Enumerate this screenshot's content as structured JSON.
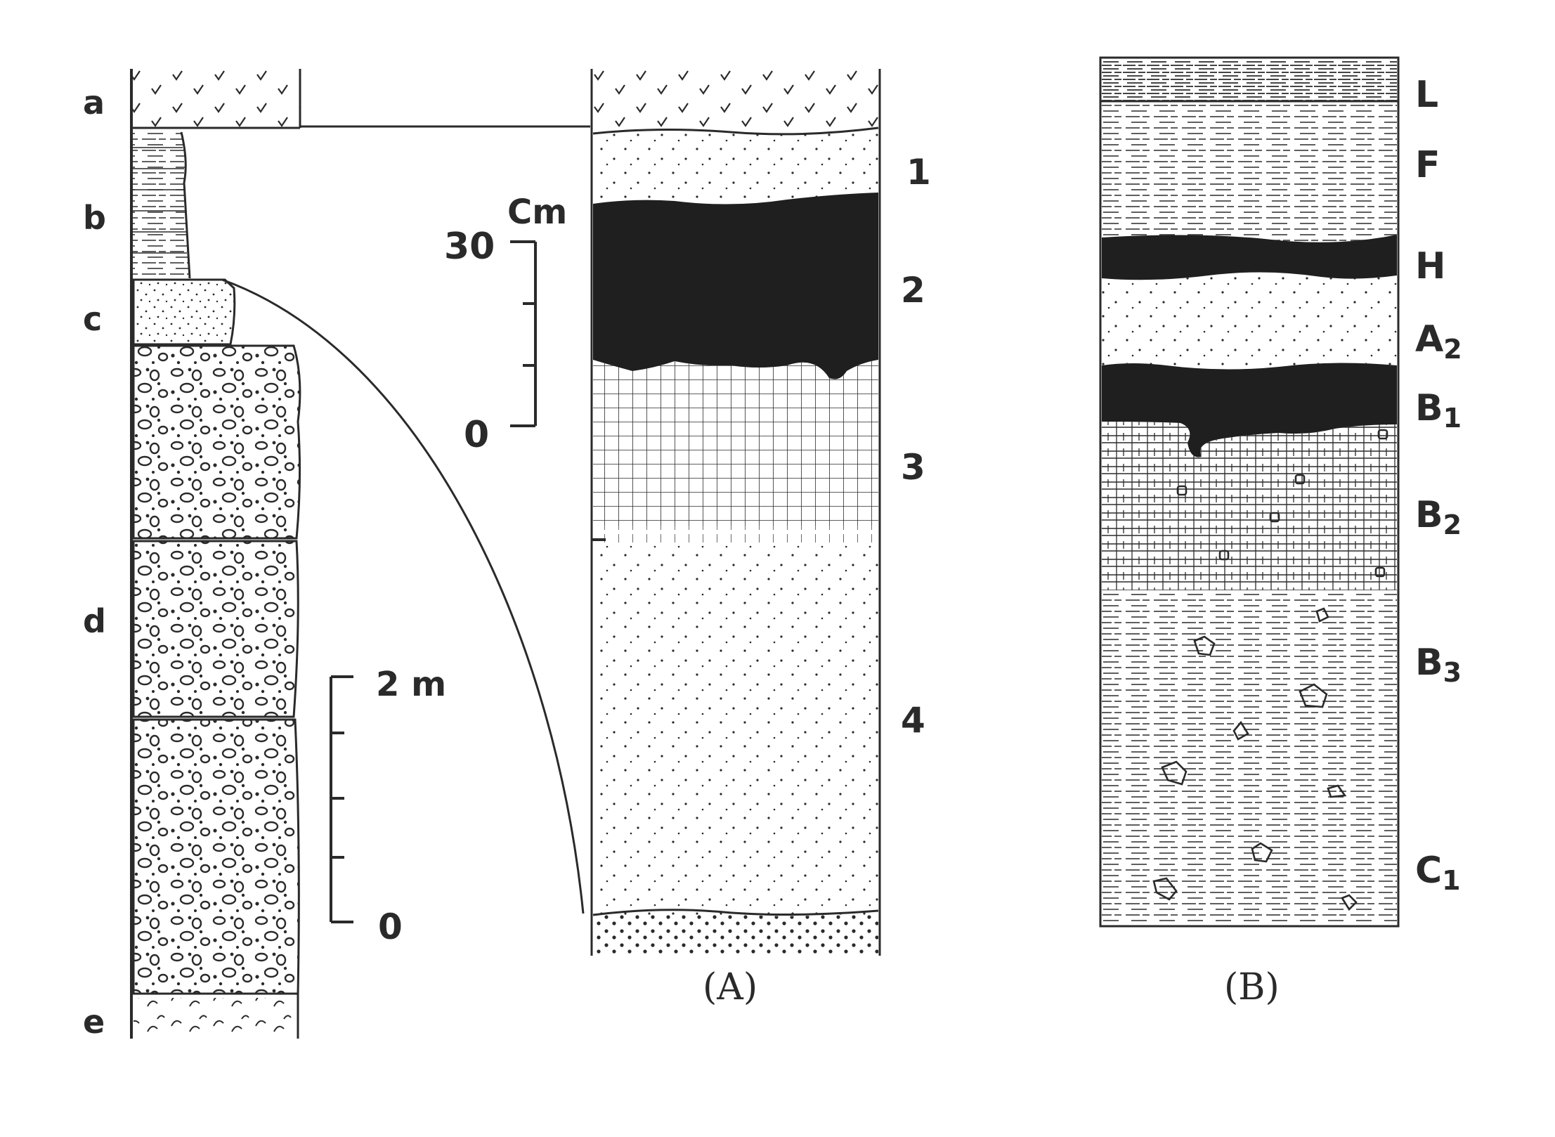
{
  "left_column": {
    "labels": [
      "a",
      "b",
      "c",
      "d",
      "e"
    ],
    "scale": {
      "top_label": "2 m",
      "bottom_label": "0"
    }
  },
  "column_a": {
    "layer_numbers": [
      "1",
      "2",
      "3",
      "4"
    ],
    "scale": {
      "unit": "Cm",
      "top_label": "30",
      "bottom_label": "0"
    },
    "caption": "(A)"
  },
  "column_b": {
    "horizons": [
      {
        "main": "L",
        "sub": ""
      },
      {
        "main": "F",
        "sub": ""
      },
      {
        "main": "H",
        "sub": ""
      },
      {
        "main": "A",
        "sub": "2"
      },
      {
        "main": "B",
        "sub": "1"
      },
      {
        "main": "B",
        "sub": "2"
      },
      {
        "main": "B",
        "sub": "3"
      },
      {
        "main": "C",
        "sub": "1"
      }
    ],
    "caption": "(B)"
  },
  "colors": {
    "ink": "#2a2a2a",
    "paper": "#ffffff"
  }
}
